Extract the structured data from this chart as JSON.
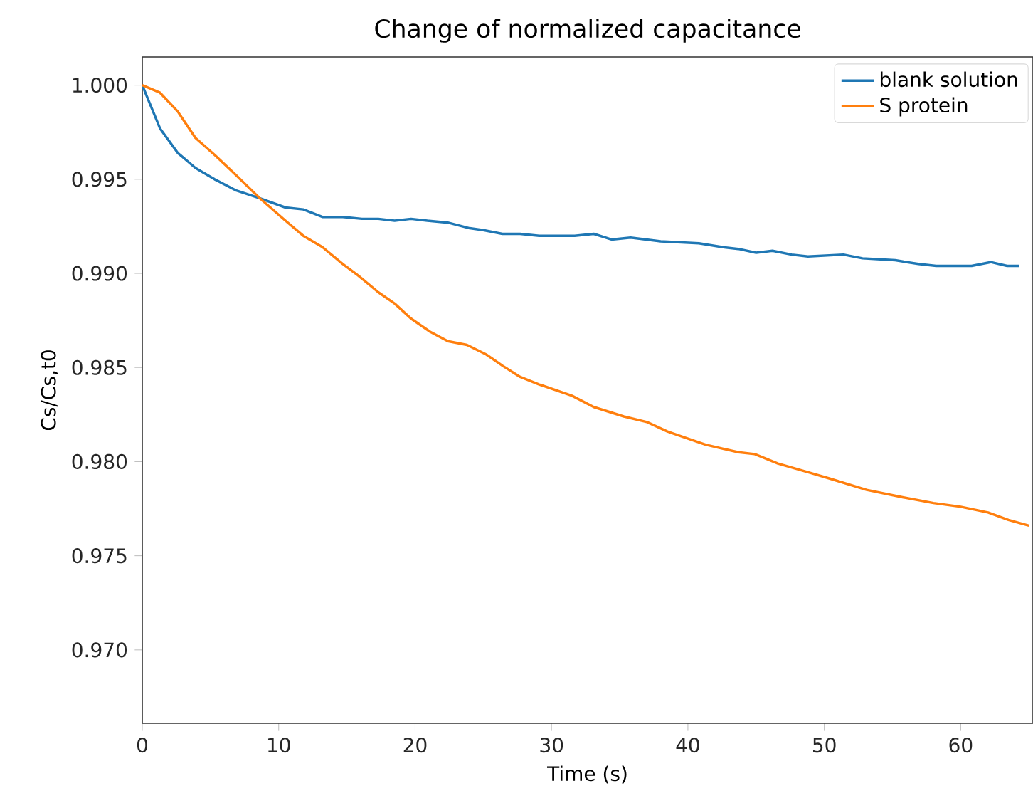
{
  "chart_data": {
    "type": "line",
    "title": "Change of normalized capacitance",
    "xlabel": "Time (s)",
    "ylabel": "Cs/Cs,t0",
    "xlim": [
      0,
      65.3
    ],
    "ylim": [
      0.9661,
      1.0015
    ],
    "xticks": [
      0,
      10,
      20,
      30,
      40,
      50,
      60
    ],
    "yticks": [
      {
        "value": 0.97,
        "label": "0.970"
      },
      {
        "value": 0.975,
        "label": "0.975"
      },
      {
        "value": 0.98,
        "label": "0.980"
      },
      {
        "value": 0.985,
        "label": "0.985"
      },
      {
        "value": 0.99,
        "label": "0.990"
      },
      {
        "value": 0.995,
        "label": "0.995"
      },
      {
        "value": 1.0,
        "label": "1.000"
      }
    ],
    "legend": "top right",
    "series": [
      {
        "name": "blank solution",
        "color": "#1f77b4",
        "x": [
          0,
          1.3,
          2.6,
          3.9,
          5.3,
          6.9,
          8.6,
          10.5,
          11.8,
          13.2,
          14.7,
          16.1,
          17.3,
          18.5,
          19.7,
          20.9,
          22.4,
          24.0,
          25.0,
          26.4,
          27.7,
          29.1,
          30.5,
          31.7,
          33.1,
          34.4,
          35.8,
          38.0,
          40.8,
          42.5,
          43.7,
          45.0,
          46.2,
          47.6,
          48.8,
          51.4,
          52.8,
          55.2,
          56.9,
          58.2,
          60.8,
          62.2,
          63.4,
          64.3
        ],
        "values": [
          1.0,
          0.9977,
          0.9964,
          0.9956,
          0.995,
          0.9944,
          0.994,
          0.9935,
          0.9934,
          0.993,
          0.993,
          0.9929,
          0.9929,
          0.9928,
          0.9929,
          0.9928,
          0.9927,
          0.9924,
          0.9923,
          0.9921,
          0.9921,
          0.992,
          0.992,
          0.992,
          0.9921,
          0.9918,
          0.9919,
          0.9917,
          0.9916,
          0.9914,
          0.9913,
          0.9911,
          0.9912,
          0.991,
          0.9909,
          0.991,
          0.9908,
          0.9907,
          0.9905,
          0.9904,
          0.9904,
          0.9906,
          0.9904,
          0.9904
        ]
      },
      {
        "name": "S protein",
        "color": "#ff7f0e",
        "x": [
          0,
          1.3,
          2.6,
          3.9,
          5.3,
          6.9,
          8.6,
          10.5,
          11.8,
          13.2,
          14.7,
          15.8,
          17.3,
          18.5,
          19.7,
          21.1,
          22.4,
          23.8,
          25.2,
          26.4,
          27.7,
          29.1,
          31.5,
          33.1,
          35.3,
          37.0,
          38.5,
          39.7,
          41.3,
          43.7,
          44.9,
          46.6,
          49.0,
          50.4,
          53.1,
          55.8,
          58.0,
          60.0,
          62.0,
          63.5,
          65.0
        ],
        "values": [
          1.0,
          0.9996,
          0.9986,
          0.9972,
          0.9963,
          0.9952,
          0.994,
          0.9928,
          0.992,
          0.9914,
          0.9905,
          0.9899,
          0.989,
          0.9884,
          0.9876,
          0.9869,
          0.9864,
          0.9862,
          0.9857,
          0.9851,
          0.9845,
          0.9841,
          0.9835,
          0.9829,
          0.9824,
          0.9821,
          0.9816,
          0.9813,
          0.9809,
          0.9805,
          0.9804,
          0.9799,
          0.9794,
          0.9791,
          0.9785,
          0.9781,
          0.9778,
          0.9776,
          0.9773,
          0.9769,
          0.9766
        ]
      }
    ]
  }
}
